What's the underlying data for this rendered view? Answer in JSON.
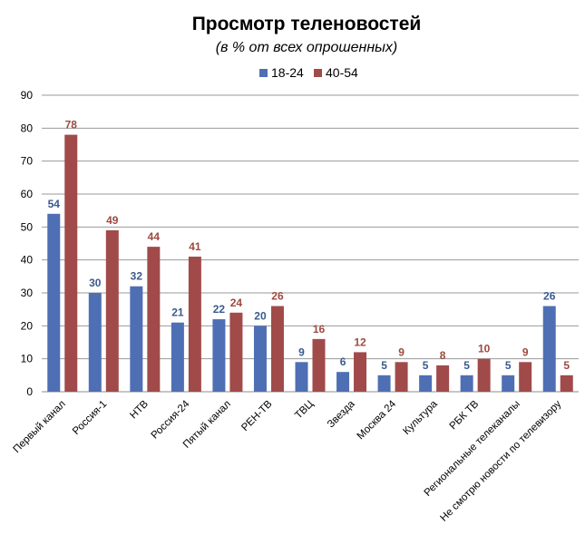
{
  "chart_data": {
    "type": "bar",
    "title": "Просмотр теленовостей",
    "subtitle": "(в % от всех опрошенных)",
    "xlabel": "",
    "ylabel": "",
    "ylim": [
      0,
      90
    ],
    "yticks": [
      0,
      10,
      20,
      30,
      40,
      50,
      60,
      70,
      80,
      90
    ],
    "grid": true,
    "legend_position": "top",
    "categories": [
      "Первый канал",
      "Россия-1",
      "НТВ",
      "Россия-24",
      "Пятый канал",
      "РЕН-ТВ",
      "ТВЦ",
      "Звезда",
      "Москва 24",
      "Культура",
      "РБК ТВ",
      "Региональные  телеканалы",
      "Не смотрю новости по телевизору"
    ],
    "series": [
      {
        "name": "18-24",
        "color": "#4f6fb5",
        "label_color": "#3a5a8c",
        "values": [
          54,
          30,
          32,
          21,
          22,
          20,
          9,
          6,
          5,
          5,
          5,
          5,
          26
        ],
        "labels": [
          "54",
          "30",
          "32",
          "21",
          "22",
          "20",
          "9",
          "6",
          "5",
          "5",
          "5",
          "5",
          "26"
        ]
      },
      {
        "name": "40-54",
        "color": "#a14a4a",
        "label_color": "#9c4a3f",
        "values": [
          78,
          49,
          44,
          41,
          24,
          26,
          16,
          12,
          9,
          8,
          10,
          9,
          5
        ],
        "labels": [
          "78",
          "49",
          "44",
          "41",
          "24",
          "26",
          "16",
          "12",
          "9",
          "8",
          "10",
          "9",
          "5"
        ]
      }
    ]
  }
}
